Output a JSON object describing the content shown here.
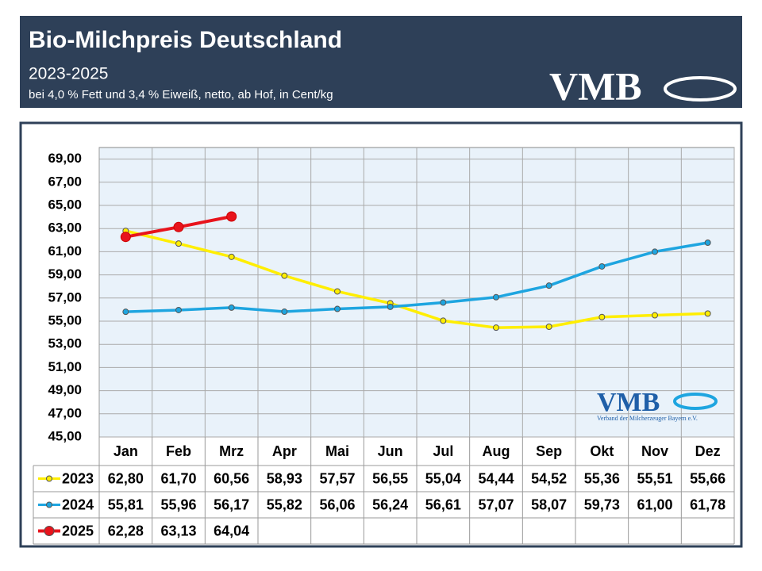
{
  "header": {
    "title": "Bio-Milchpreis Deutschland",
    "subtitle": "2023-2025",
    "note": "bei 4,0 % Fett und 3,4 % Eiweiß, netto, ab Hof, in Cent/kg",
    "logo": "VMB"
  },
  "watermark": {
    "logo": "VMB",
    "caption": "Verband der Milcherzeuger Bayern e.V."
  },
  "chart_data": {
    "type": "line",
    "categories": [
      "Jan",
      "Feb",
      "Mrz",
      "Apr",
      "Mai",
      "Jun",
      "Jul",
      "Aug",
      "Sep",
      "Okt",
      "Nov",
      "Dez"
    ],
    "series": [
      {
        "name": "2023",
        "color": "#ffee00",
        "values": [
          62.8,
          61.7,
          60.56,
          58.93,
          57.57,
          56.55,
          55.04,
          54.44,
          54.52,
          55.36,
          55.51,
          55.66
        ],
        "value_labels": [
          "62,80",
          "61,70",
          "60,56",
          "58,93",
          "57,57",
          "56,55",
          "55,04",
          "54,44",
          "54,52",
          "55,36",
          "55,51",
          "55,66"
        ]
      },
      {
        "name": "2024",
        "color": "#1ea5e0",
        "values": [
          55.81,
          55.96,
          56.17,
          55.82,
          56.06,
          56.24,
          56.61,
          57.07,
          58.07,
          59.73,
          61.0,
          61.78
        ],
        "value_labels": [
          "55,81",
          "55,96",
          "56,17",
          "55,82",
          "56,06",
          "56,24",
          "56,61",
          "57,07",
          "58,07",
          "59,73",
          "61,00",
          "61,78"
        ]
      },
      {
        "name": "2025",
        "color": "#e8141c",
        "values": [
          62.28,
          63.13,
          64.04,
          null,
          null,
          null,
          null,
          null,
          null,
          null,
          null,
          null
        ],
        "value_labels": [
          "62,28",
          "63,13",
          "64,04",
          null,
          null,
          null,
          null,
          null,
          null,
          null,
          null,
          null
        ]
      }
    ],
    "ylim": [
      45,
      70
    ],
    "yticks": [
      {
        "value": 45,
        "label": "45,00"
      },
      {
        "value": 47,
        "label": "47,00"
      },
      {
        "value": 49,
        "label": "49,00"
      },
      {
        "value": 51,
        "label": "51,00"
      },
      {
        "value": 53,
        "label": "53,00"
      },
      {
        "value": 55,
        "label": "55,00"
      },
      {
        "value": 57,
        "label": "57,00"
      },
      {
        "value": 59,
        "label": "59,00"
      },
      {
        "value": 61,
        "label": "61,00"
      },
      {
        "value": 63,
        "label": "63,00"
      },
      {
        "value": 65,
        "label": "65,00"
      },
      {
        "value": 67,
        "label": "67,00"
      },
      {
        "value": 69,
        "label": "69,00"
      }
    ],
    "grid": true
  }
}
